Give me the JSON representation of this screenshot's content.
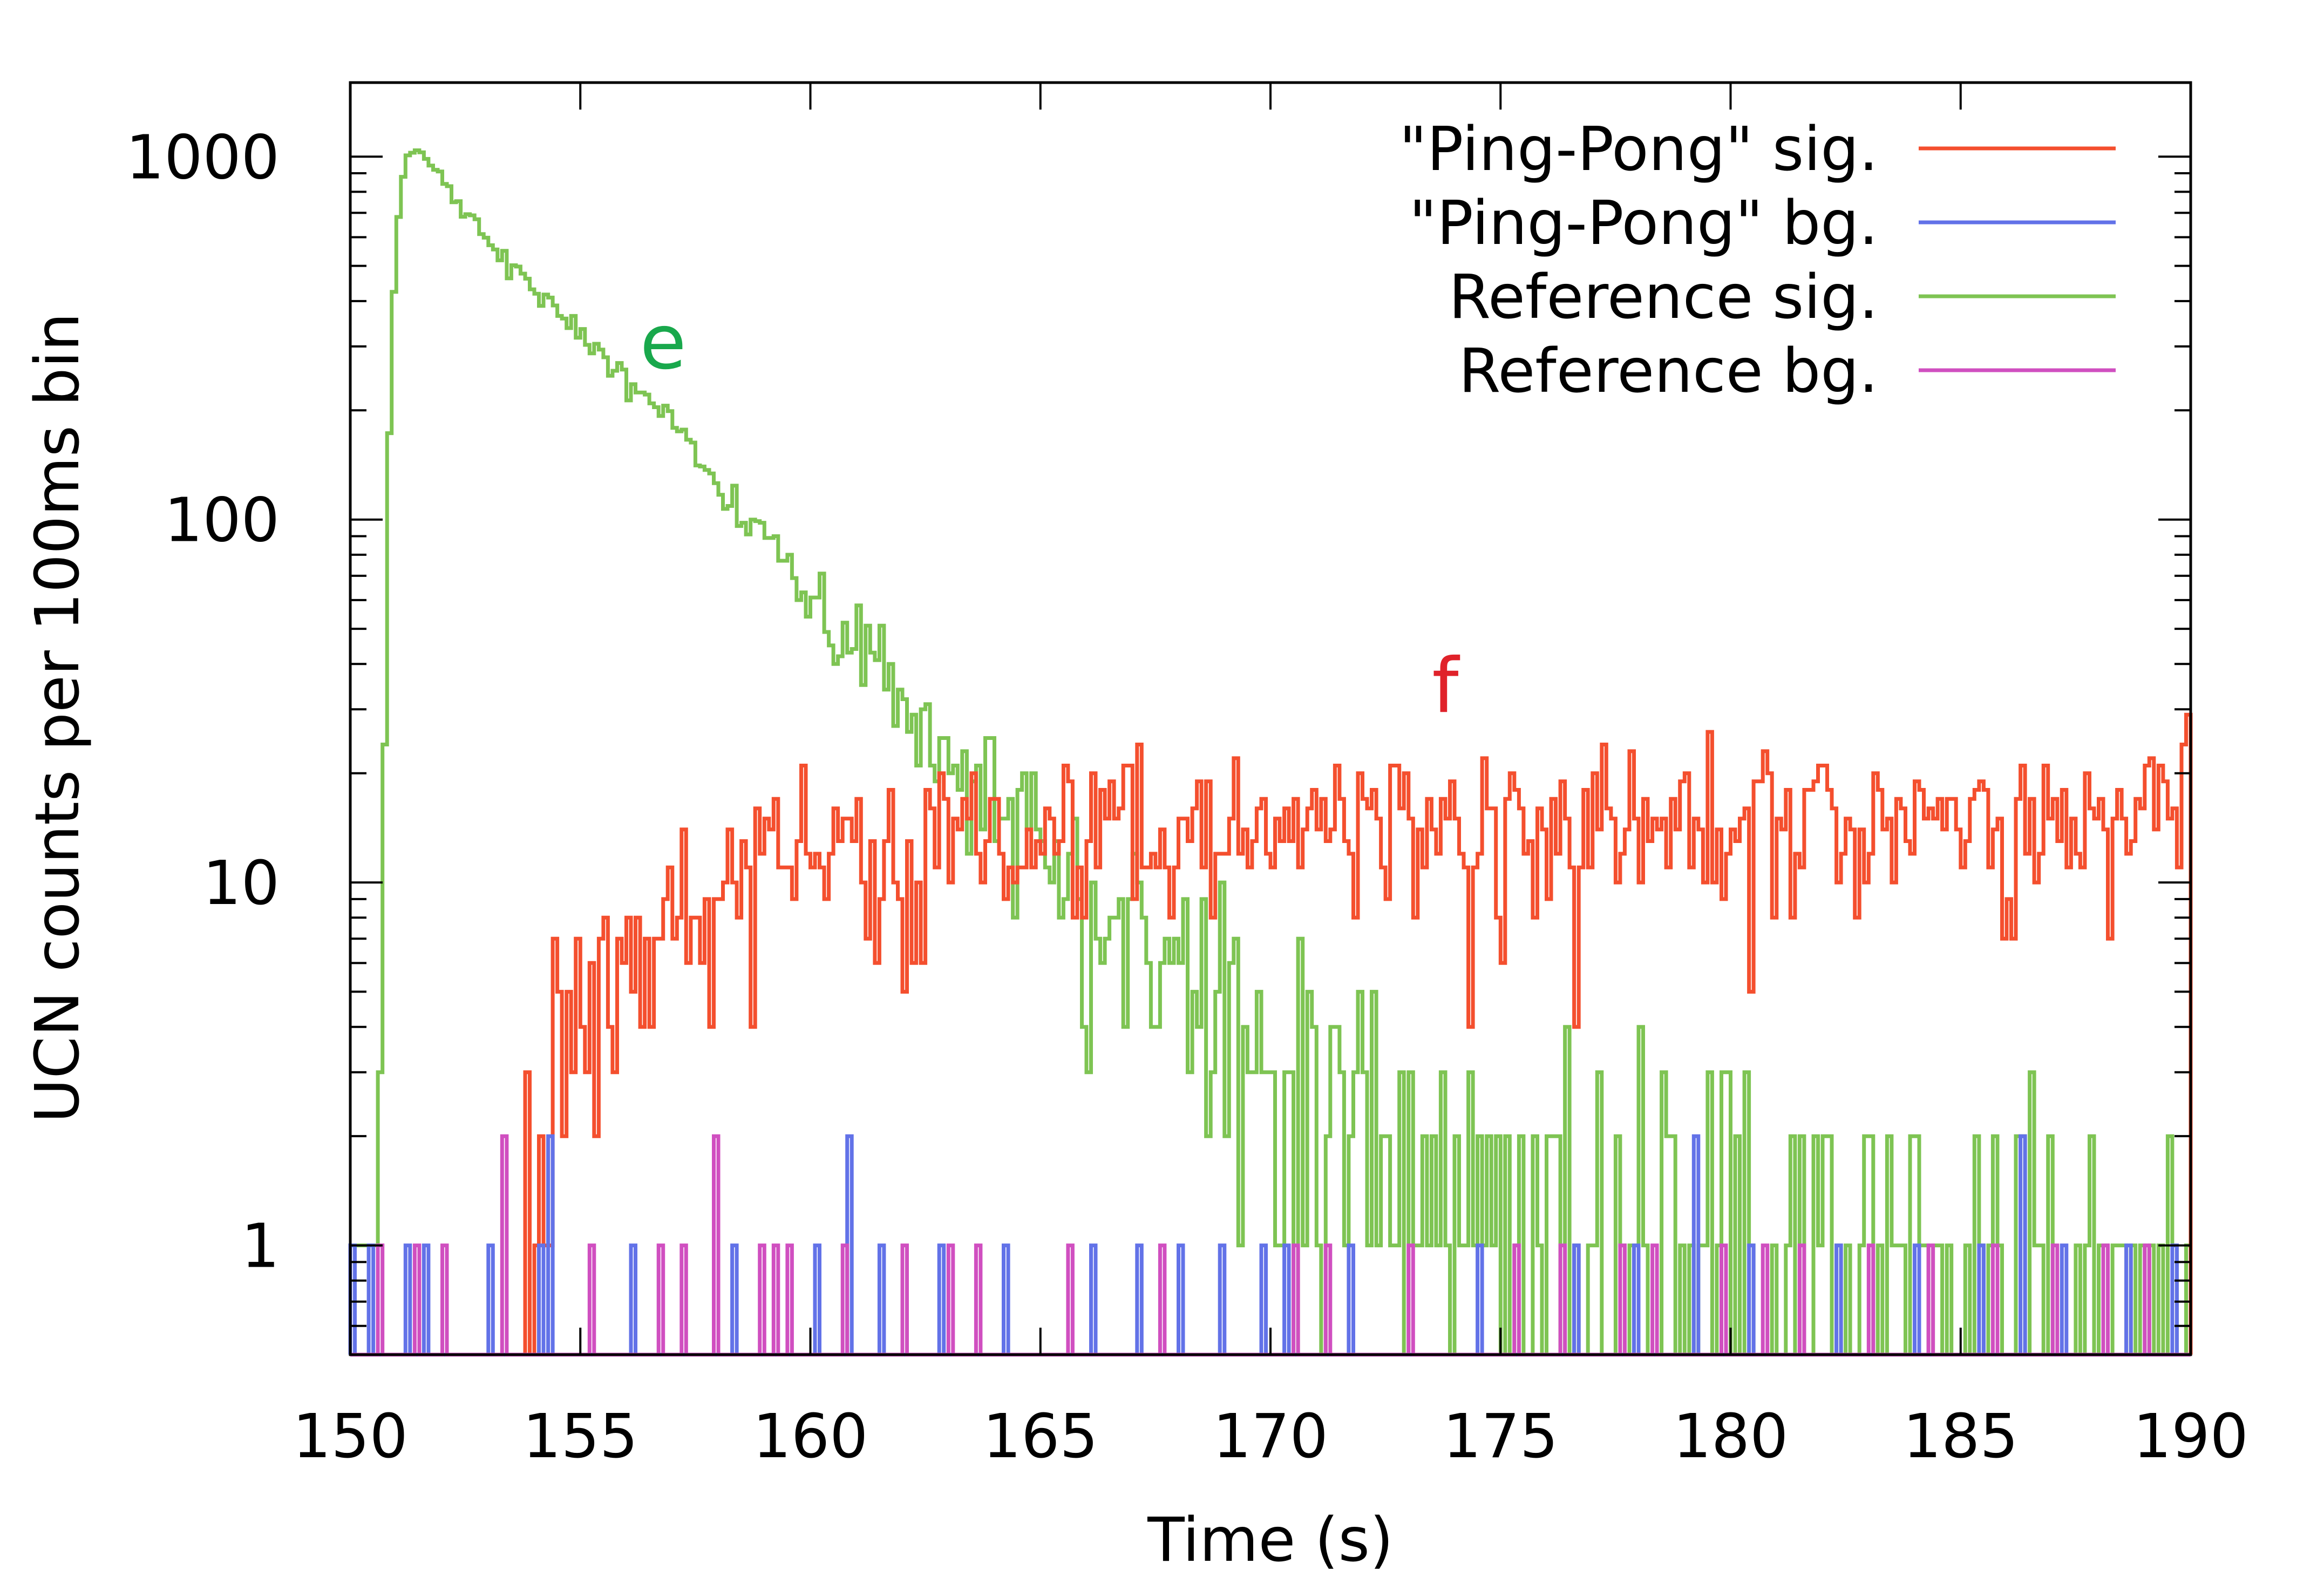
{
  "chart_data": {
    "type": "line",
    "title": "",
    "xlabel": "Time (s)",
    "ylabel": "UCN counts per 100ms bin",
    "xlim": [
      150,
      190
    ],
    "ylim": [
      0.5,
      1600
    ],
    "yscale": "log",
    "grid": false,
    "legend_position": "top-right",
    "x_ticks": [
      150,
      155,
      160,
      165,
      170,
      175,
      180,
      185,
      190
    ],
    "x_tick_labels": [
      "150",
      "155",
      "160",
      "165",
      "170",
      "175",
      "180",
      "185",
      "190"
    ],
    "y_ticks": [
      1,
      10,
      100,
      1000
    ],
    "y_tick_labels": [
      "1",
      "10",
      "100",
      "1000"
    ],
    "bin_width_s": 0.1,
    "series": [
      {
        "name": "\"Ping-Pong\" sig.",
        "color": "#f44f2e",
        "shape": "rising exponential approach to plateau with Poisson noise",
        "start_s": 153.6,
        "plateau_counts": 15,
        "rise_time_s": 4.5,
        "approx_points": [
          [
            154,
            4
          ],
          [
            155,
            6
          ],
          [
            156,
            8
          ],
          [
            157,
            10
          ],
          [
            158,
            12
          ],
          [
            160,
            13
          ],
          [
            162,
            14
          ],
          [
            165,
            15
          ],
          [
            170,
            15
          ],
          [
            175,
            15
          ],
          [
            180,
            14
          ],
          [
            185,
            14
          ],
          [
            190,
            13
          ]
        ]
      },
      {
        "name": "\"Ping-Pong\" bg.",
        "color": "#6272e8",
        "shape": "sparse background counts",
        "events": [
          [
            150.0,
            1
          ],
          [
            150.4,
            1
          ],
          [
            151.2,
            1
          ],
          [
            151.6,
            1
          ],
          [
            153.0,
            1
          ],
          [
            154.1,
            1
          ],
          [
            154.3,
            2
          ],
          [
            156.1,
            1
          ],
          [
            158.3,
            1
          ],
          [
            160.1,
            1
          ],
          [
            160.8,
            2
          ],
          [
            161.5,
            1
          ],
          [
            162.8,
            1
          ],
          [
            164.2,
            1
          ],
          [
            166.1,
            1
          ],
          [
            167.1,
            1
          ],
          [
            168.0,
            1
          ],
          [
            168.9,
            1
          ],
          [
            169.8,
            1
          ],
          [
            170.3,
            1
          ],
          [
            171.7,
            1
          ],
          [
            174.5,
            1
          ],
          [
            176.6,
            1
          ],
          [
            177.9,
            1
          ],
          [
            179.2,
            2
          ],
          [
            180.4,
            1
          ],
          [
            182.3,
            1
          ],
          [
            184.0,
            1
          ],
          [
            185.4,
            1
          ],
          [
            186.3,
            2
          ],
          [
            187.2,
            1
          ],
          [
            188.6,
            1
          ],
          [
            189.6,
            1
          ]
        ]
      },
      {
        "name": "Reference sig.",
        "color": "#7ec453",
        "shape": "sharp rise then exponential decay",
        "approx_points": [
          [
            150.3,
            0.5
          ],
          [
            150.5,
            1
          ],
          [
            150.6,
            2
          ],
          [
            150.7,
            6
          ],
          [
            150.8,
            100
          ],
          [
            150.9,
            300
          ],
          [
            151.0,
            600
          ],
          [
            151.2,
            1000
          ],
          [
            151.5,
            1050
          ],
          [
            152,
            850
          ],
          [
            153,
            600
          ],
          [
            154,
            420
          ],
          [
            155,
            330
          ],
          [
            156,
            250
          ],
          [
            157,
            180
          ],
          [
            158,
            120
          ],
          [
            159,
            85
          ],
          [
            160,
            60
          ],
          [
            161,
            45
          ],
          [
            162,
            30
          ],
          [
            163,
            22
          ],
          [
            164,
            17
          ],
          [
            165,
            13
          ],
          [
            166,
            10
          ],
          [
            167,
            8
          ],
          [
            168,
            6.5
          ],
          [
            169,
            5
          ],
          [
            170,
            4
          ],
          [
            171,
            3
          ],
          [
            172,
            2.5
          ],
          [
            173,
            2
          ],
          [
            174,
            1.7
          ],
          [
            175,
            1.5
          ],
          [
            178,
            1.2
          ],
          [
            180,
            1
          ],
          [
            185,
            0.8
          ],
          [
            190,
            0.7
          ]
        ]
      },
      {
        "name": "Reference bg.",
        "color": "#d04fc0",
        "shape": "sparse background counts",
        "events": [
          [
            150.6,
            1
          ],
          [
            151.4,
            1
          ],
          [
            152.0,
            1
          ],
          [
            153.3,
            2
          ],
          [
            155.2,
            1
          ],
          [
            156.7,
            1
          ],
          [
            157.2,
            1
          ],
          [
            157.9,
            2
          ],
          [
            158.9,
            1
          ],
          [
            159.2,
            1
          ],
          [
            159.5,
            1
          ],
          [
            160.7,
            1
          ],
          [
            162.0,
            1
          ],
          [
            163.0,
            1
          ],
          [
            163.6,
            1
          ],
          [
            165.6,
            1
          ],
          [
            167.6,
            1
          ],
          [
            170.5,
            1
          ],
          [
            171.2,
            1
          ],
          [
            173.0,
            1
          ],
          [
            175.3,
            1
          ],
          [
            176.3,
            1
          ],
          [
            177.6,
            1
          ],
          [
            178.3,
            1
          ],
          [
            179.8,
            1
          ],
          [
            180.7,
            1
          ],
          [
            181.5,
            1
          ],
          [
            183.0,
            1
          ],
          [
            184.3,
            1
          ],
          [
            185.7,
            1
          ],
          [
            187.0,
            1
          ],
          [
            188.1,
            1
          ],
          [
            189.0,
            1
          ]
        ]
      }
    ],
    "annotations": [
      {
        "text": "e",
        "x": 156.8,
        "y": 310,
        "color": "#19a84c"
      },
      {
        "text": "f",
        "x": 173.8,
        "y": 35,
        "color": "#e0222a"
      }
    ]
  }
}
